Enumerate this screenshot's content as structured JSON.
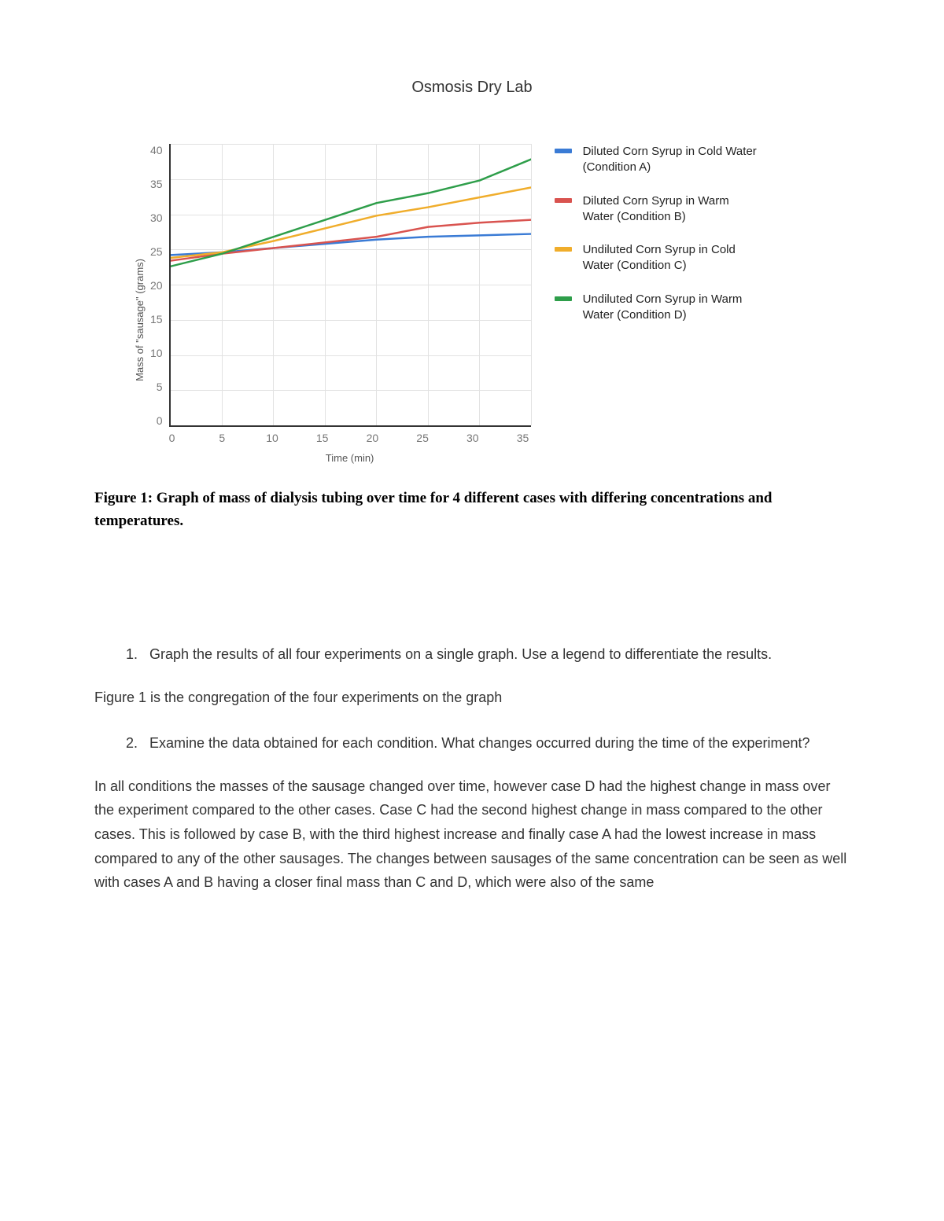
{
  "title": "Osmosis Dry Lab",
  "chart": {
    "type": "line",
    "y_label": "Mass of \"sausage\" (grams)",
    "x_label": "Time (min)",
    "xlim": [
      0,
      35
    ],
    "ylim": [
      0,
      40
    ],
    "xtick_step": 5,
    "ytick_step": 5,
    "x_ticks": [
      "0",
      "5",
      "10",
      "15",
      "20",
      "25",
      "30",
      "35"
    ],
    "y_ticks": [
      "40",
      "35",
      "30",
      "25",
      "20",
      "15",
      "10",
      "5",
      "0"
    ],
    "background_color": "#ffffff",
    "grid_color": "#e2e2e2",
    "axis_color": "#333333",
    "line_width": 2.5,
    "series": [
      {
        "id": "A",
        "label": "Diluted Corn Syrup in Cold Water (Condition A)",
        "color": "#3a7bd5",
        "points": [
          [
            0,
            24.2
          ],
          [
            5,
            24.6
          ],
          [
            10,
            25.2
          ],
          [
            15,
            25.8
          ],
          [
            20,
            26.4
          ],
          [
            25,
            26.8
          ],
          [
            30,
            27.0
          ],
          [
            35,
            27.2
          ]
        ]
      },
      {
        "id": "B",
        "label": "Diluted Corn Syrup in Warm Water (Condition B)",
        "color": "#d9534f",
        "points": [
          [
            0,
            23.4
          ],
          [
            5,
            24.4
          ],
          [
            10,
            25.2
          ],
          [
            15,
            26.0
          ],
          [
            20,
            26.8
          ],
          [
            25,
            28.2
          ],
          [
            30,
            28.8
          ],
          [
            35,
            29.2
          ]
        ]
      },
      {
        "id": "C",
        "label": "Undiluted Corn  Syrup in Cold Water (Condition C)",
        "color": "#f0ad2b",
        "points": [
          [
            0,
            23.8
          ],
          [
            5,
            24.6
          ],
          [
            10,
            26.2
          ],
          [
            15,
            28.0
          ],
          [
            20,
            29.8
          ],
          [
            25,
            31.0
          ],
          [
            30,
            32.4
          ],
          [
            35,
            33.8
          ]
        ]
      },
      {
        "id": "D",
        "label": "Undiluted Corn Syrup in Warm Water (Condition D)",
        "color": "#2e9e4a",
        "points": [
          [
            0,
            22.6
          ],
          [
            5,
            24.4
          ],
          [
            10,
            26.8
          ],
          [
            15,
            29.2
          ],
          [
            20,
            31.6
          ],
          [
            25,
            33.0
          ],
          [
            30,
            34.8
          ],
          [
            35,
            37.8
          ]
        ]
      }
    ]
  },
  "caption": "Figure 1: Graph of mass of dialysis tubing over time for 4 different cases with differing concentrations and temperatures.",
  "q1": "Graph the results of all four experiments on a single graph. Use a legend to differentiate the results.",
  "a1": "Figure 1 is the congregation of the four experiments on the graph",
  "q2": "Examine the data obtained for each condition. What changes occurred during the time of the experiment?",
  "a2": "In all conditions the masses of the sausage changed over time, however case D had the highest change in mass over the experiment compared to the other cases. Case C had the second highest change in mass compared to the other cases. This is followed by case B, with the third highest increase and finally case A had the lowest increase in mass compared to any of the other sausages. The changes between sausages of the same concentration can be seen as well with cases A and B having a closer final mass than C and D, which were also of the same"
}
